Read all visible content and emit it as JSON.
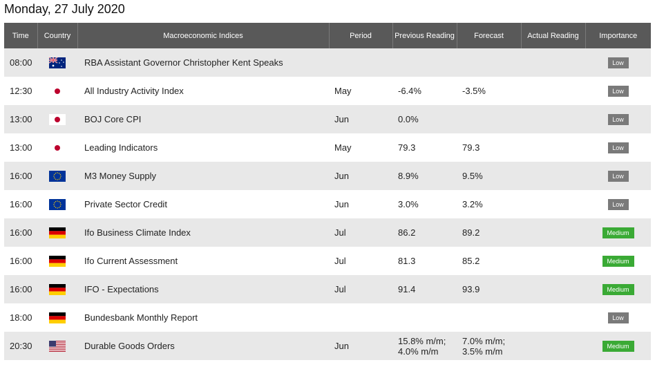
{
  "date_title": "Monday, 27 July 2020",
  "columns": {
    "time": "Time",
    "country": "Country",
    "indices": "Macroeconomic Indices",
    "period": "Period",
    "previous": "Previous Reading",
    "forecast": "Forecast",
    "actual": "Actual Reading",
    "importance": "Importance"
  },
  "rows": [
    {
      "time": "08:00",
      "flag": "australia-flag-icon",
      "name": "RBA Assistant Governor Christopher Kent Speaks",
      "period": "",
      "previous": "",
      "forecast": "",
      "actual": "",
      "importance": "Low"
    },
    {
      "time": "12:30",
      "flag": "japan-flag-icon",
      "name": "All Industry Activity Index",
      "period": "May",
      "previous": "-6.4%",
      "forecast": "-3.5%",
      "actual": "",
      "importance": "Low"
    },
    {
      "time": "13:00",
      "flag": "japan-flag-icon",
      "name": "BOJ Core CPI",
      "period": "Jun",
      "previous": "0.0%",
      "forecast": "",
      "actual": "",
      "importance": "Low"
    },
    {
      "time": "13:00",
      "flag": "japan-flag-icon",
      "name": "Leading Indicators",
      "period": "May",
      "previous": "79.3",
      "forecast": "79.3",
      "actual": "",
      "importance": "Low"
    },
    {
      "time": "16:00",
      "flag": "eu-flag-icon",
      "name": "M3 Money Supply",
      "period": "Jun",
      "previous": "8.9%",
      "forecast": "9.5%",
      "actual": "",
      "importance": "Low"
    },
    {
      "time": "16:00",
      "flag": "eu-flag-icon",
      "name": "Private Sector Credit",
      "period": "Jun",
      "previous": "3.0%",
      "forecast": "3.2%",
      "actual": "",
      "importance": "Low"
    },
    {
      "time": "16:00",
      "flag": "germany-flag-icon",
      "name": "Ifo Business Climate Index",
      "period": "Jul",
      "previous": "86.2",
      "forecast": "89.2",
      "actual": "",
      "importance": "Medium"
    },
    {
      "time": "16:00",
      "flag": "germany-flag-icon",
      "name": "Ifo Current Assessment",
      "period": "Jul",
      "previous": "81.3",
      "forecast": "85.2",
      "actual": "",
      "importance": "Medium"
    },
    {
      "time": "16:00",
      "flag": "germany-flag-icon",
      "name": "IFO - Expectations",
      "period": "Jul",
      "previous": "91.4",
      "forecast": "93.9",
      "actual": "",
      "importance": "Medium"
    },
    {
      "time": "18:00",
      "flag": "germany-flag-icon",
      "name": "Bundesbank Monthly Report",
      "period": "",
      "previous": "",
      "forecast": "",
      "actual": "",
      "importance": "Low"
    },
    {
      "time": "20:30",
      "flag": "usa-flag-icon",
      "name": "Durable Goods Orders",
      "period": "Jun",
      "previous": "15.8% m/m; 4.0% m/m",
      "forecast": "7.0% m/m; 3.5% m/m",
      "actual": "",
      "importance": "Medium"
    }
  ],
  "colors": {
    "header_bg": "#595959",
    "row_alt_bg": "#e8e8e8",
    "low_badge": "#7a7a7a",
    "medium_badge": "#3aaa35"
  }
}
